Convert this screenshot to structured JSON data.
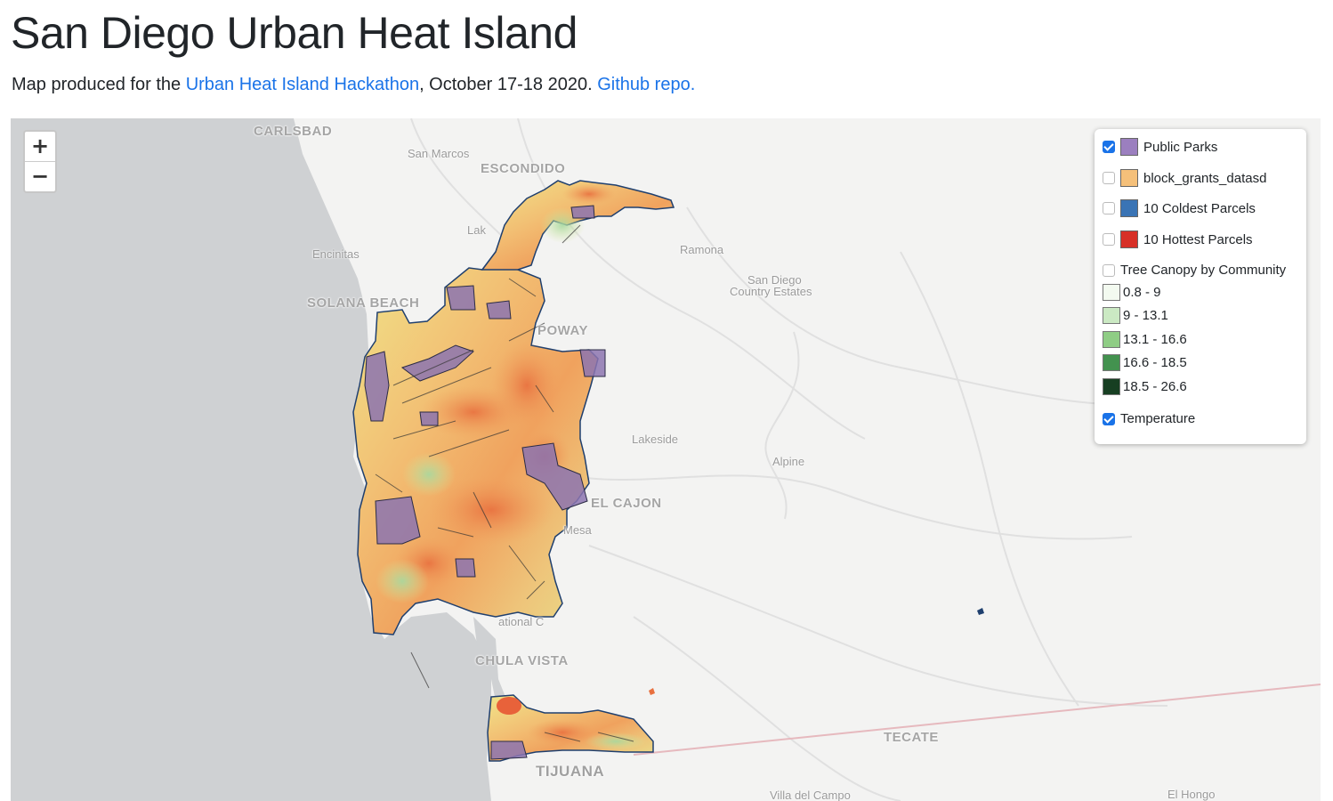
{
  "page": {
    "title": "San Diego Urban Heat Island",
    "subtitle_prefix": "Map produced for the ",
    "hackathon_link": "Urban Heat Island Hackathon",
    "subtitle_middle": ", October 17-18 2020. ",
    "repo_link": "Github repo."
  },
  "map": {
    "zoom_in": "+",
    "zoom_out": "−",
    "place_labels": [
      "CARLSBAD",
      "San Marcos",
      "ESCONDIDO",
      "Encinitas",
      "SOLANA BEACH",
      "Ramona",
      "San Diego",
      "Country Estates",
      "POWAY",
      "Lakeside",
      "Alpine",
      "EL CAJON",
      "Mesa",
      "CHULA VISTA",
      "TECATE",
      "TIJUANA",
      "Villa del Campo",
      "El Hongo",
      "Lak",
      "ational C"
    ]
  },
  "legend": {
    "layers": [
      {
        "label": "Public Parks",
        "checked": true,
        "color": "#9b7fbf"
      },
      {
        "label": "block_grants_datasd",
        "checked": false,
        "color": "#f5c07a"
      },
      {
        "label": "10 Coldest Parcels",
        "checked": false,
        "color": "#3a74b5"
      },
      {
        "label": "10 Hottest Parcels",
        "checked": false,
        "color": "#d73027"
      }
    ],
    "tree_canopy": {
      "label": "Tree Canopy by Community",
      "checked": false,
      "classes": [
        {
          "range": "0.8 - 9",
          "color": "#f3faf0"
        },
        {
          "range": "9 - 13.1",
          "color": "#cbe9c3"
        },
        {
          "range": "13.1 - 16.6",
          "color": "#8fcd85"
        },
        {
          "range": "16.6 - 18.5",
          "color": "#43924f"
        },
        {
          "range": "18.5 - 26.6",
          "color": "#173f22"
        }
      ]
    },
    "temperature": {
      "label": "Temperature",
      "checked": true
    }
  }
}
